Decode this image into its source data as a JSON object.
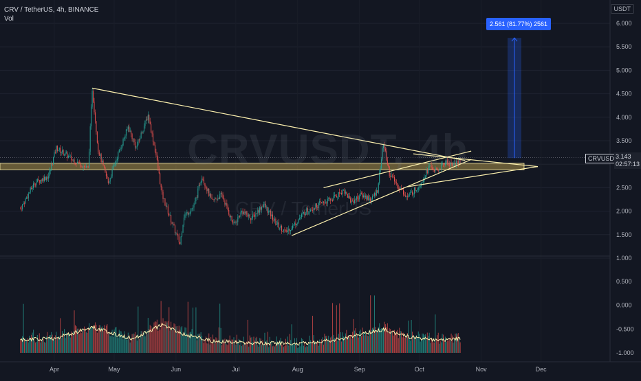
{
  "header": {
    "symbol_line": "CRV / TetherUS, 4h, BINANCE",
    "indicator": "Vol"
  },
  "toolbar": {
    "currency_label": "USDT"
  },
  "watermark": {
    "line1": "CRVUSDT, 4h",
    "line2": "CRV / TetherUS"
  },
  "measure_tool": {
    "label": "2.561 (81.77%) 2561",
    "from": 3.13,
    "to": 5.69
  },
  "current_price": {
    "ticker": "CRVUSDT",
    "value": "3.143",
    "countdown": "02:57:13",
    "level": 3.143
  },
  "colors": {
    "background": "#131722",
    "up": "#26a69a",
    "down": "#ef5350",
    "trendline": "#fff3b0",
    "zone_fill": "rgba(240,200,90,0.38)",
    "measure": "#2962ff"
  },
  "chart_data": {
    "type": "candlestick",
    "title": "CRV / TetherUS, 4h, BINANCE",
    "price_axis": {
      "ticks": [
        "6.000",
        "5.500",
        "5.000",
        "4.500",
        "4.000",
        "3.500",
        "3.000",
        "2.500",
        "2.000",
        "1.500",
        "1.000"
      ],
      "min": 1.0,
      "max": 6.0
    },
    "volume_axis": {
      "ticks": [
        "0.500",
        "0.000",
        "-0.500",
        "-1.000"
      ],
      "min": -1.0,
      "max": 0.5
    },
    "time_axis": {
      "ticks": [
        "Apr",
        "May",
        "Jun",
        "Jul",
        "Aug",
        "Sep",
        "Oct",
        "Nov",
        "Dec"
      ]
    },
    "grid": true,
    "price_keypoints": [
      [
        "03-15",
        2.05
      ],
      [
        "03-22",
        2.6
      ],
      [
        "03-29",
        2.75
      ],
      [
        "04-02",
        3.35
      ],
      [
        "04-10",
        3.1
      ],
      [
        "04-18",
        2.9
      ],
      [
        "04-20",
        4.6
      ],
      [
        "04-23",
        3.3
      ],
      [
        "04-28",
        2.6
      ],
      [
        "05-02",
        3.1
      ],
      [
        "05-08",
        3.8
      ],
      [
        "05-12",
        3.35
      ],
      [
        "05-18",
        4.05
      ],
      [
        "05-22",
        3.2
      ],
      [
        "05-25",
        2.35
      ],
      [
        "05-30",
        1.75
      ],
      [
        "06-03",
        1.3
      ],
      [
        "06-05",
        1.9
      ],
      [
        "06-10",
        2.1
      ],
      [
        "06-14",
        2.75
      ],
      [
        "06-19",
        2.2
      ],
      [
        "06-24",
        2.35
      ],
      [
        "06-30",
        1.7
      ],
      [
        "07-04",
        2.0
      ],
      [
        "07-09",
        1.85
      ],
      [
        "07-15",
        2.15
      ],
      [
        "07-21",
        1.75
      ],
      [
        "07-26",
        1.55
      ],
      [
        "07-30",
        1.7
      ],
      [
        "08-05",
        2.0
      ],
      [
        "08-12",
        2.15
      ],
      [
        "08-18",
        2.25
      ],
      [
        "08-24",
        2.45
      ],
      [
        "08-28",
        2.2
      ],
      [
        "09-02",
        2.35
      ],
      [
        "09-07",
        2.25
      ],
      [
        "09-10",
        2.45
      ],
      [
        "09-13",
        3.45
      ],
      [
        "09-16",
        2.8
      ],
      [
        "09-20",
        2.55
      ],
      [
        "09-25",
        2.3
      ],
      [
        "10-01",
        2.55
      ],
      [
        "10-06",
        2.95
      ],
      [
        "10-10",
        2.85
      ],
      [
        "10-14",
        3.05
      ],
      [
        "10-18",
        3.0
      ],
      [
        "10-22",
        3.1
      ]
    ],
    "volume_keypoints": [
      [
        "03-15",
        -0.82
      ],
      [
        "04-02",
        -0.78
      ],
      [
        "04-20",
        -0.55
      ],
      [
        "05-10",
        -0.8
      ],
      [
        "05-25",
        -0.5
      ],
      [
        "06-05",
        -0.7
      ],
      [
        "06-20",
        -0.85
      ],
      [
        "07-10",
        -0.88
      ],
      [
        "08-01",
        -0.9
      ],
      [
        "08-20",
        -0.82
      ],
      [
        "09-13",
        -0.6
      ],
      [
        "09-25",
        -0.75
      ],
      [
        "10-10",
        -0.82
      ],
      [
        "10-22",
        -0.8
      ]
    ],
    "drawings": {
      "support_zone": {
        "low": 2.88,
        "high": 3.02
      },
      "descending_line": {
        "from": [
          "04-20",
          4.62
        ],
        "to": [
          "10-24",
          3.08
        ]
      },
      "channel_upper": {
        "from": [
          "08-14",
          2.5
        ],
        "to": [
          "10-27",
          3.28
        ]
      },
      "channel_lower": {
        "from": [
          "07-29",
          1.48
        ],
        "to": [
          "10-27",
          3.1
        ]
      },
      "wedge_upper": {
        "from": [
          "09-28",
          2.95
        ],
        "to": [
          "11-24",
          2.95
        ]
      },
      "wedge_lower": {
        "from": [
          "09-25",
          2.52
        ],
        "to": [
          "11-24",
          2.95
        ]
      }
    }
  }
}
